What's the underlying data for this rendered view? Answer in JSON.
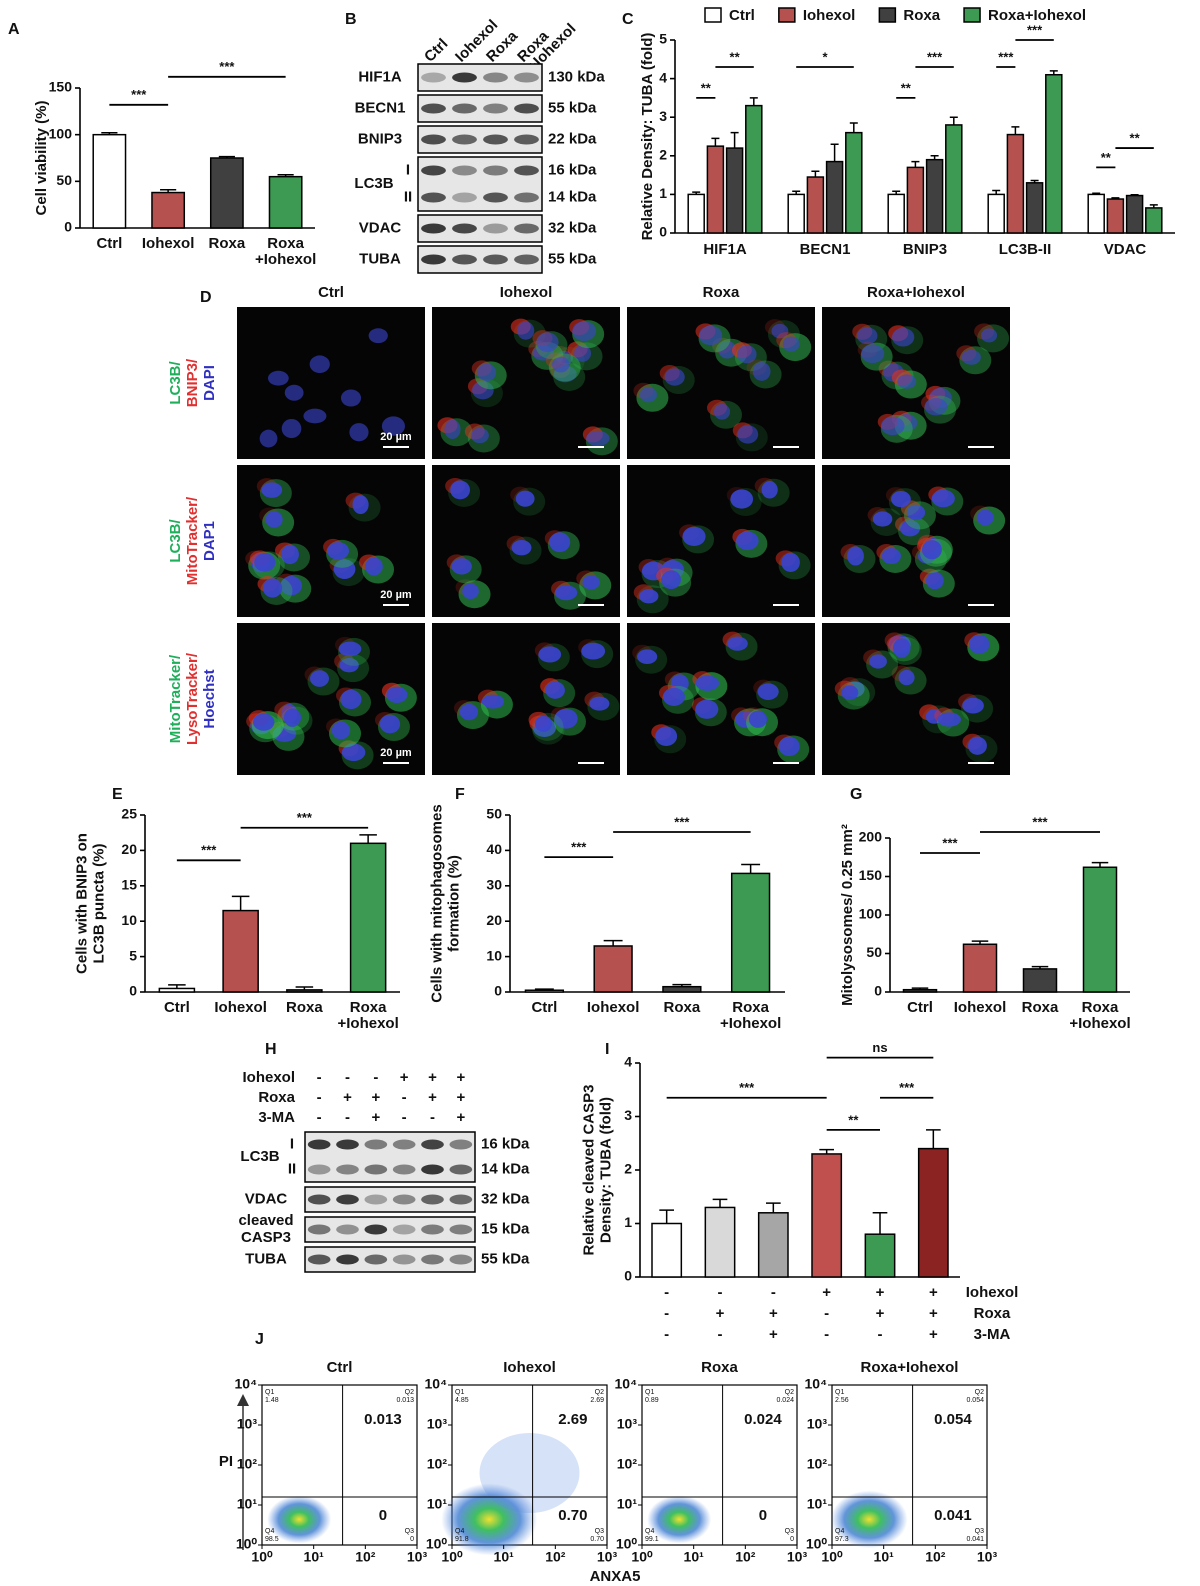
{
  "chart_data": [
    {
      "panel": "A",
      "type": "bar",
      "ylabel": "Cell viability (%)",
      "categories": [
        "Ctrl",
        "Iohexol",
        "Roxa",
        "Roxa\n+Iohexol"
      ],
      "values": [
        100,
        38,
        75,
        55
      ],
      "errors": [
        2,
        3,
        1.5,
        2
      ],
      "colors": [
        "#ffffff",
        "#b5524f",
        "#404040",
        "#3c9a52"
      ],
      "ylim": [
        0,
        150
      ],
      "yticks": [
        0,
        50,
        100,
        150
      ],
      "annotations": [
        {
          "text": "***",
          "from": 0,
          "to": 1,
          "y": 132
        },
        {
          "text": "***",
          "from": 1,
          "to": 3,
          "y": 162
        }
      ]
    },
    {
      "panel": "C",
      "type": "bar",
      "ylabel": "Relative Density: TUBA (fold)",
      "categories": [
        "HIF1A",
        "BECN1",
        "BNIP3",
        "LC3B-II",
        "VDAC"
      ],
      "series": [
        {
          "name": "Ctrl",
          "color": "#ffffff",
          "values": [
            1,
            1,
            1,
            1,
            1
          ],
          "errors": [
            0.06,
            0.08,
            0.08,
            0.1,
            0.03
          ]
        },
        {
          "name": "Iohexol",
          "color": "#b5524f",
          "values": [
            2.25,
            1.45,
            1.7,
            2.55,
            0.88
          ],
          "errors": [
            0.2,
            0.15,
            0.15,
            0.2,
            0.03
          ]
        },
        {
          "name": "Roxa",
          "color": "#404040",
          "values": [
            2.2,
            1.85,
            1.9,
            1.3,
            0.97
          ],
          "errors": [
            0.4,
            0.45,
            0.1,
            0.06,
            0.02
          ]
        },
        {
          "name": "Roxa+Iohexol",
          "color": "#3c9a52",
          "values": [
            3.3,
            2.6,
            2.8,
            4.1,
            0.65
          ],
          "errors": [
            0.2,
            0.25,
            0.2,
            0.1,
            0.08
          ]
        }
      ],
      "ylim": [
        0,
        5
      ],
      "yticks": [
        0,
        1,
        2,
        3,
        4,
        5
      ],
      "legend": "top",
      "annotations": [
        {
          "text": "**",
          "category": 0,
          "from": 0,
          "to": 1,
          "y": 3.5
        },
        {
          "text": "**",
          "category": 0,
          "from": 1,
          "to": 3,
          "y": 4.3
        },
        {
          "text": "*",
          "category": 1,
          "from": 0,
          "to": 3,
          "y": 4.3
        },
        {
          "text": "**",
          "category": 2,
          "from": 0,
          "to": 1,
          "y": 3.5
        },
        {
          "text": "***",
          "category": 2,
          "from": 1,
          "to": 3,
          "y": 4.3
        },
        {
          "text": "***",
          "category": 3,
          "from": 0,
          "to": 1,
          "y": 4.3
        },
        {
          "text": "***",
          "category": 3,
          "from": 1,
          "to": 3,
          "y": 5.0
        },
        {
          "text": "**",
          "category": 4,
          "from": 0,
          "to": 1,
          "y": 1.7
        },
        {
          "text": "**",
          "category": 4,
          "from": 1,
          "to": 3,
          "y": 2.2
        }
      ]
    },
    {
      "panel": "E",
      "type": "bar",
      "ylabel": "Cells with BNIP3 on\nLC3B puncta (%)",
      "categories": [
        "Ctrl",
        "Iohexol",
        "Roxa",
        "Roxa\n+Iohexol"
      ],
      "values": [
        0.5,
        11.5,
        0.3,
        21
      ],
      "errors": [
        0.5,
        2,
        0.4,
        1.2
      ],
      "colors": [
        "#ffffff",
        "#b5524f",
        "#404040",
        "#3c9a52"
      ],
      "ylim": [
        0,
        25
      ],
      "yticks": [
        0,
        5,
        10,
        15,
        20,
        25
      ],
      "annotations": [
        {
          "text": "***",
          "from": 0,
          "to": 1,
          "y": 18.6
        },
        {
          "text": "***",
          "from": 1,
          "to": 3,
          "y": 23.2
        }
      ]
    },
    {
      "panel": "F",
      "type": "bar",
      "ylabel": "Cells with mitophagosomes\nformation (%)",
      "categories": [
        "Ctrl",
        "Iohexol",
        "Roxa",
        "Roxa\n+Iohexol"
      ],
      "values": [
        0.5,
        13,
        1.5,
        33.5
      ],
      "errors": [
        0.3,
        1.5,
        0.6,
        2.5
      ],
      "colors": [
        "#ffffff",
        "#b5524f",
        "#404040",
        "#3c9a52"
      ],
      "ylim": [
        0,
        50
      ],
      "yticks": [
        0,
        10,
        20,
        30,
        40,
        50
      ],
      "annotations": [
        {
          "text": "***",
          "from": 0,
          "to": 1,
          "y": 38.1
        },
        {
          "text": "***",
          "from": 1,
          "to": 3,
          "y": 45.2
        }
      ]
    },
    {
      "panel": "G",
      "type": "bar",
      "ylabel": "Mitolysosomes/ 0.25 mm²",
      "categories": [
        "Ctrl",
        "Iohexol",
        "Roxa",
        "Roxa\n+Iohexol"
      ],
      "values": [
        3,
        62,
        30,
        162
      ],
      "errors": [
        2,
        4,
        3,
        6
      ],
      "colors": [
        "#404040",
        "#b5524f",
        "#404040",
        "#3c9a52"
      ],
      "ylim": [
        0,
        200
      ],
      "yticks": [
        0,
        50,
        100,
        150,
        200
      ],
      "annotations": [
        {
          "text": "***",
          "from": 0,
          "to": 1,
          "y": 180.5
        },
        {
          "text": "***",
          "from": 1,
          "to": 3,
          "y": 207.8
        }
      ]
    },
    {
      "panel": "I",
      "type": "bar",
      "ylabel": "Relative cleaved CASP3\nDensity: TUBA (fold)",
      "values": [
        1.0,
        1.3,
        1.2,
        2.3,
        0.8,
        2.4
      ],
      "errors": [
        0.25,
        0.15,
        0.18,
        0.08,
        0.4,
        0.35
      ],
      "colors": [
        "#ffffff",
        "#d9d9d9",
        "#a6a6a6",
        "#c0504d",
        "#3c9a52",
        "#8b2323"
      ],
      "ylim": [
        0,
        4
      ],
      "yticks": [
        0,
        1,
        2,
        3,
        4
      ],
      "annotations": [
        {
          "text": "***",
          "from": 0,
          "to": 3,
          "y": 3.35
        },
        {
          "text": "ns",
          "from": 3,
          "to": 5,
          "y": 4.1
        },
        {
          "text": "**",
          "from": 3,
          "to": 4,
          "y": 2.75
        },
        {
          "text": "***",
          "from": 4,
          "to": 5,
          "y": 3.35
        }
      ],
      "treatments": [
        {
          "label": "Iohexol",
          "signs": [
            "-",
            "-",
            "-",
            "+",
            "+",
            "+"
          ]
        },
        {
          "label": "Roxa",
          "signs": [
            "-",
            "+",
            "+",
            "-",
            "+",
            "+"
          ]
        },
        {
          "label": "3-MA",
          "signs": [
            "-",
            "-",
            "+",
            "-",
            "-",
            "+"
          ]
        }
      ]
    }
  ],
  "blots": [
    {
      "panel": "B",
      "lanes": [
        "Ctrl",
        "Iohexol",
        "Roxa",
        "Roxa\n+Iohexol"
      ],
      "rows": [
        {
          "label": "HIF1A",
          "sizes": [
            "130 kDa"
          ]
        },
        {
          "label": "BECN1",
          "sizes": [
            "55 kDa"
          ]
        },
        {
          "label": "BNIP3",
          "sizes": [
            "22 kDa"
          ]
        },
        {
          "label": "LC3B",
          "forms": [
            "I",
            "II"
          ],
          "sizes": [
            "16 kDa",
            "14 kDa"
          ]
        },
        {
          "label": "VDAC",
          "sizes": [
            "32 kDa"
          ]
        },
        {
          "label": "TUBA",
          "sizes": [
            "55 kDa"
          ]
        }
      ]
    },
    {
      "panel": "H",
      "treatments": [
        {
          "label": "Iohexol",
          "signs": [
            "-",
            "-",
            "-",
            "+",
            "+",
            "+"
          ]
        },
        {
          "label": "Roxa",
          "signs": [
            "-",
            "+",
            "+",
            "-",
            "+",
            "+"
          ]
        },
        {
          "label": "3-MA",
          "signs": [
            "-",
            "-",
            "+",
            "-",
            "-",
            "+"
          ]
        }
      ],
      "rows": [
        {
          "label": "LC3B",
          "forms": [
            "I",
            "II"
          ],
          "sizes": [
            "16 kDa",
            "14 kDa"
          ]
        },
        {
          "label": "VDAC",
          "sizes": [
            "32 kDa"
          ]
        },
        {
          "label": "cleaved\nCASP3",
          "sizes": [
            "15 kDa"
          ]
        },
        {
          "label": "TUBA",
          "sizes": [
            "55 kDa"
          ]
        }
      ]
    }
  ],
  "micrographs": {
    "panel": "D",
    "columns": [
      "Ctrl",
      "Iohexol",
      "Roxa",
      "Roxa+Iohexol"
    ],
    "scale_bar": "20 µm",
    "rows": [
      {
        "stains": [
          {
            "text": "LC3B/",
            "color": "#1fae5a"
          },
          {
            "text": "BNIP3/",
            "color": "#e03030"
          },
          {
            "text": "DAPI",
            "color": "#3030c0"
          }
        ]
      },
      {
        "stains": [
          {
            "text": "LC3B/",
            "color": "#1fae5a"
          },
          {
            "text": "MitoTracker/",
            "color": "#e03030"
          },
          {
            "text": "DAP1",
            "color": "#3030c0"
          }
        ]
      },
      {
        "stains": [
          {
            "text": "MitoTracker/",
            "color": "#1fae5a"
          },
          {
            "text": "LysoTracker/",
            "color": "#e03030"
          },
          {
            "text": "Hoechst",
            "color": "#3030c0"
          }
        ]
      }
    ]
  },
  "flow": {
    "panel": "J",
    "xlabel": "ANXA5",
    "ylabel": "PI",
    "log": true,
    "xlim": [
      1,
      1000
    ],
    "ylim": [
      1,
      10000
    ],
    "xticks": [
      {
        "value": 1,
        "label": "10⁰"
      },
      {
        "value": 10,
        "label": "10¹"
      },
      {
        "value": 100,
        "label": "10²"
      },
      {
        "value": 1000,
        "label": "10³"
      }
    ],
    "yticks": [
      {
        "value": 1,
        "label": "10⁰"
      },
      {
        "value": 10,
        "label": "10¹"
      },
      {
        "value": 100,
        "label": "10²"
      },
      {
        "value": 1000,
        "label": "10³"
      },
      {
        "value": 10000,
        "label": "10⁴"
      }
    ],
    "plots": [
      {
        "title": "Ctrl",
        "quadrants": [
          {
            "name": "Q1",
            "value": "1.48"
          },
          {
            "name": "Q2",
            "value": "0.013"
          },
          {
            "name": "Q3",
            "value": "0"
          },
          {
            "name": "Q4",
            "value": "98.5"
          }
        ]
      },
      {
        "title": "Iohexol",
        "quadrants": [
          {
            "name": "Q1",
            "value": "4.85"
          },
          {
            "name": "Q2",
            "value": "2.69"
          },
          {
            "name": "Q3",
            "value": "0.70"
          },
          {
            "name": "Q4",
            "value": "91.8"
          }
        ]
      },
      {
        "title": "Roxa",
        "quadrants": [
          {
            "name": "Q1",
            "value": "0.89"
          },
          {
            "name": "Q2",
            "value": "0.024"
          },
          {
            "name": "Q3",
            "value": "0"
          },
          {
            "name": "Q4",
            "value": "99.1"
          }
        ]
      },
      {
        "title": "Roxa+Iohexol",
        "quadrants": [
          {
            "name": "Q1",
            "value": "2.56"
          },
          {
            "name": "Q2",
            "value": "0.054"
          },
          {
            "name": "Q3",
            "value": "0.041"
          },
          {
            "name": "Q4",
            "value": "97.3"
          }
        ]
      }
    ]
  }
}
